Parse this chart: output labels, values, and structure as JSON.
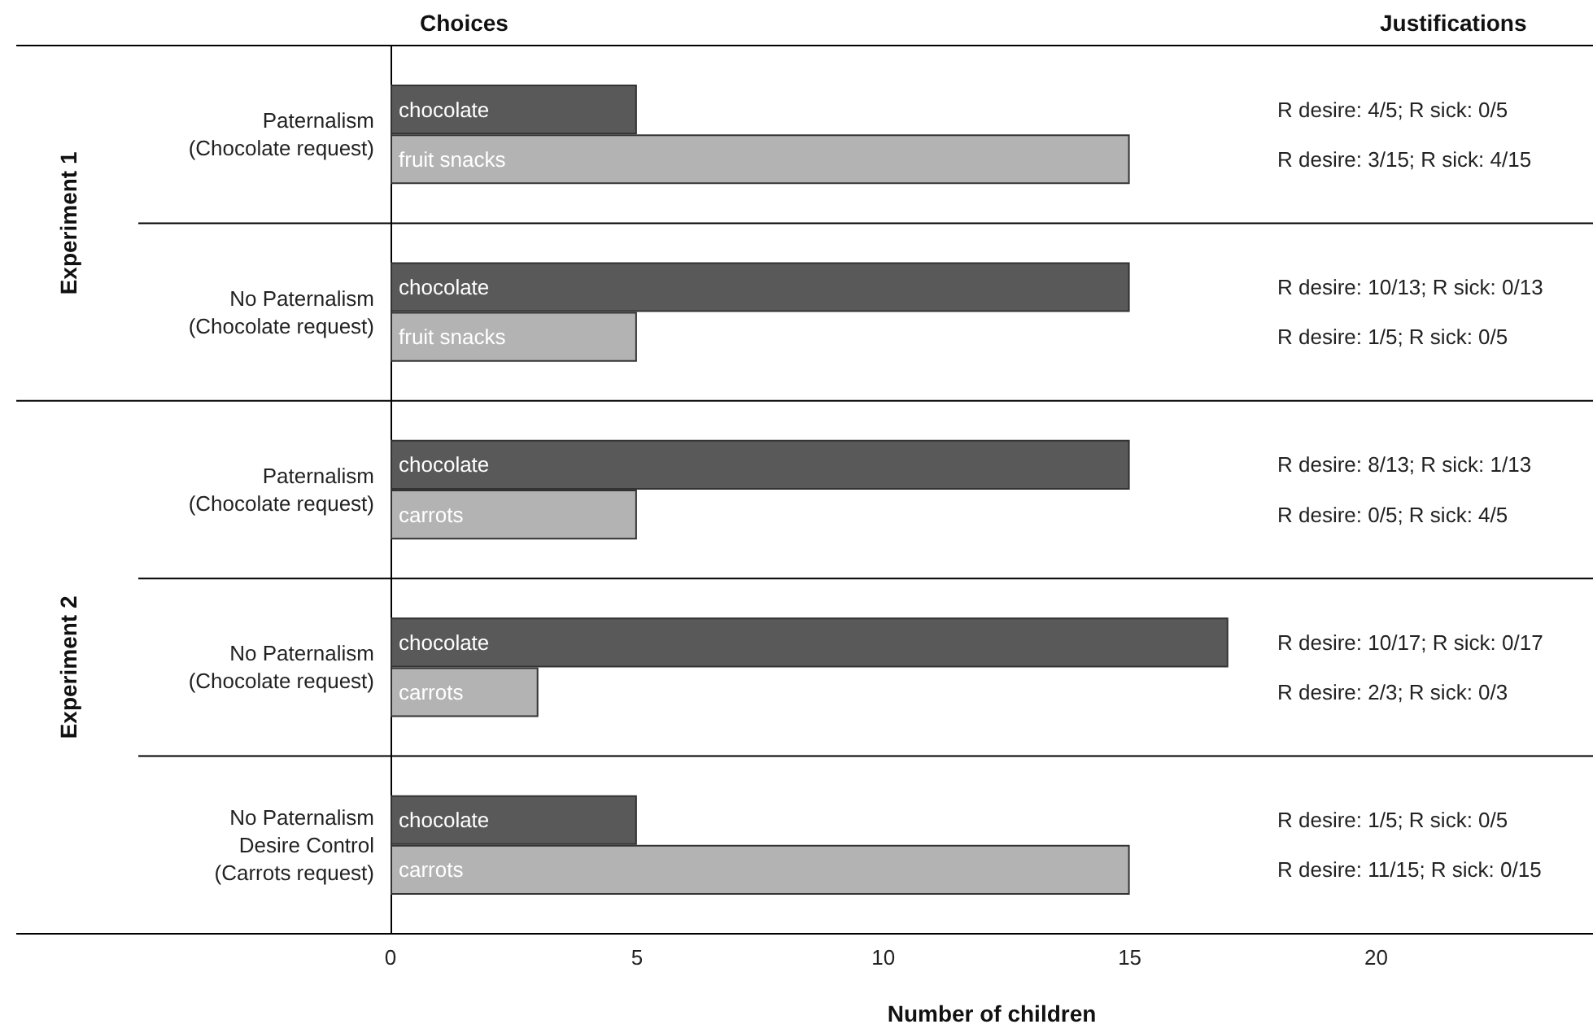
{
  "chart_data": {
    "type": "bar",
    "orientation": "horizontal",
    "xlabel": "Number of children",
    "categories": [
      "Paternalism\n(Chocolate request)",
      "No Paternalism\n(Chocolate request)",
      "Paternalism\n(Chocolate request)",
      "No Paternalism\n(Chocolate request)",
      "No Paternalism\nDesire Control\n(Carrots request)"
    ],
    "series": [
      {
        "color": "#595959",
        "values": [
          5,
          15,
          15,
          17,
          5
        ],
        "value_labels": [
          "chocolate",
          "chocolate",
          "chocolate",
          "chocolate",
          "chocolate"
        ]
      },
      {
        "color": "#b3b3b3",
        "values": [
          15,
          5,
          5,
          3,
          15
        ],
        "value_labels": [
          "fruit snacks",
          "fruit snacks",
          "carrots",
          "carrots",
          "carrots"
        ]
      }
    ],
    "xlim": [
      0,
      24.4
    ],
    "xticks": [
      0,
      5,
      10,
      15,
      20
    ],
    "grid": false,
    "annotations": [
      "Choices",
      "Justifications",
      "Experiment 1",
      "Experiment 2",
      "R desire: 4/5; R sick: 0/5",
      "R desire: 3/15; R sick: 4/15",
      "R desire: 10/13; R sick: 0/13",
      "R desire: 1/5; R sick: 0/5",
      "R desire: 8/13; R sick: 1/13",
      "R desire: 0/5; R sick: 4/5",
      "R desire: 10/17; R sick: 0/17",
      "R desire: 2/3; R sick: 0/3",
      "R desire: 1/5; R sick: 0/5",
      "R desire: 11/15; R sick: 0/15"
    ]
  }
}
